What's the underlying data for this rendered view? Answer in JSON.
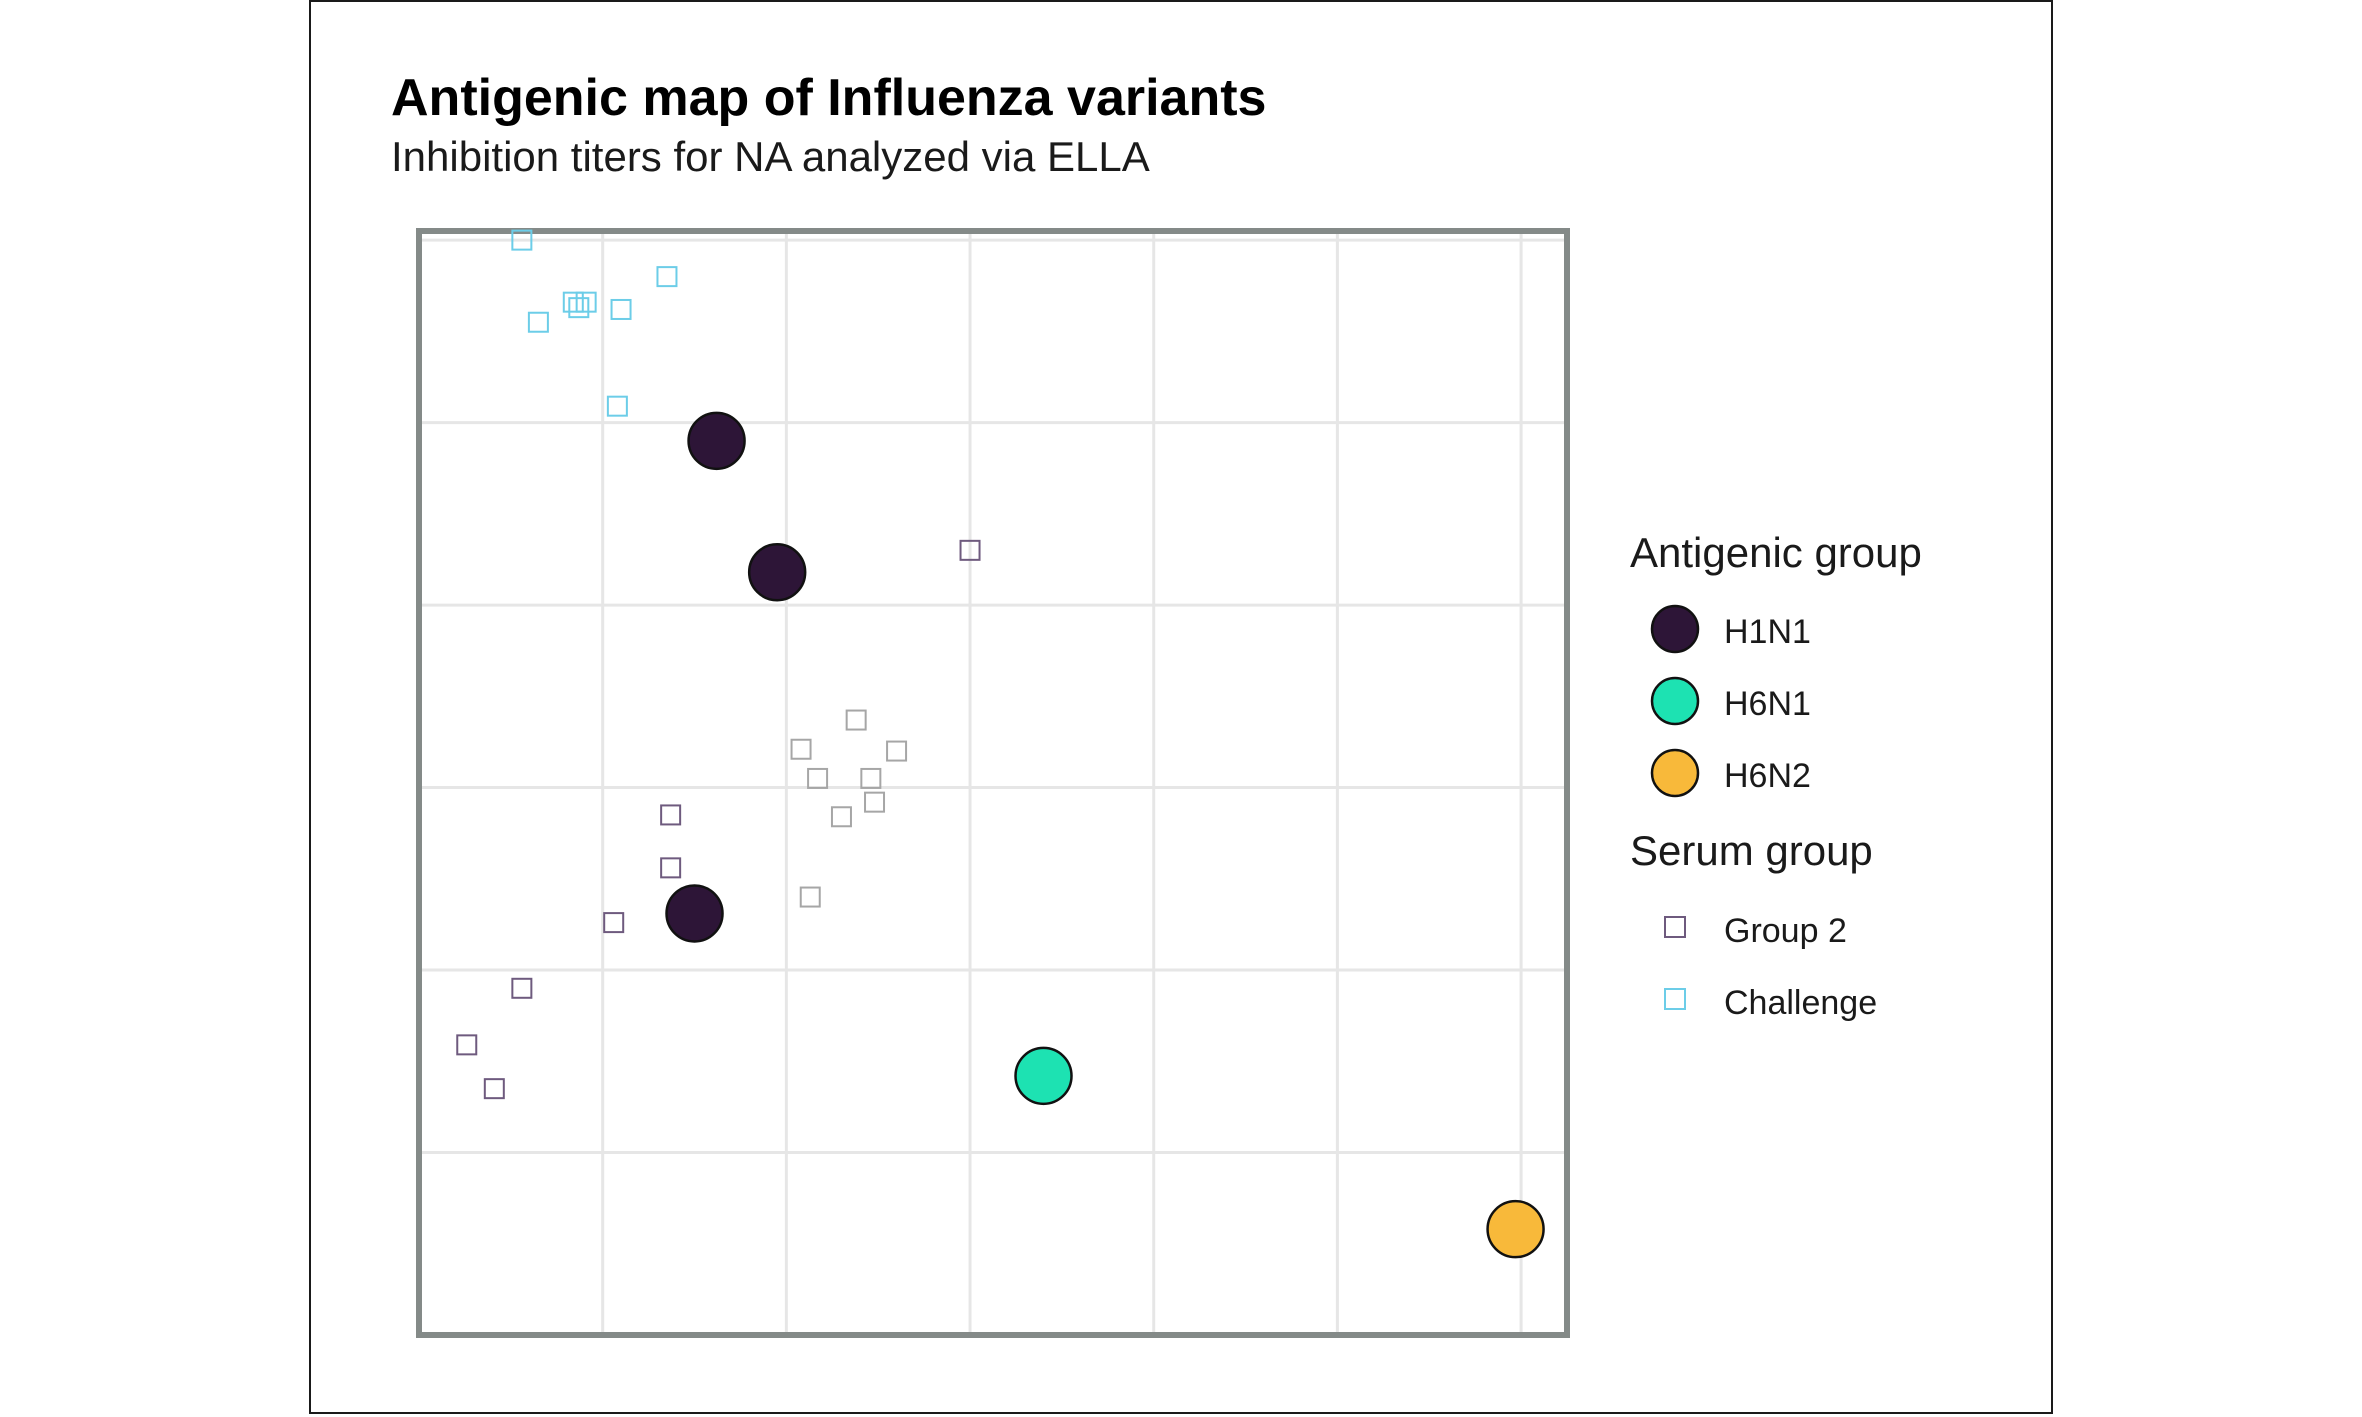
{
  "title": "Antigenic map of Influenza variants",
  "subtitle": "Inhibition titers for NA analyzed via ELLA",
  "chart_data": {
    "type": "scatter",
    "title": "Antigenic map of Influenza variants",
    "subtitle": "Inhibition titers for NA analyzed via ELLA",
    "xlabel": "",
    "ylabel": "",
    "xlim": [
      -1.0,
      5.25
    ],
    "ylim": [
      -1.0,
      5.05
    ],
    "grid": true,
    "tick_labels_shown": false,
    "legend_position": "right",
    "antigen_legend_title": "Antigenic group",
    "serum_legend_title": "Serum group",
    "antigens": [
      {
        "name": "H1N1",
        "color": "#2d1537",
        "points": [
          [
            0.62,
            3.9
          ],
          [
            0.95,
            3.18
          ],
          [
            0.5,
            1.31
          ]
        ]
      },
      {
        "name": "H6N1",
        "color": "#1de2b2",
        "points": [
          [
            2.4,
            0.42
          ]
        ]
      },
      {
        "name": "H6N2",
        "color": "#f8b93a",
        "points": [
          [
            4.97,
            -0.42
          ]
        ]
      }
    ],
    "sera": [
      {
        "name": "Group 2",
        "color": "#6e5a7e",
        "show_in_legend": true,
        "points": [
          [
            2.0,
            3.3
          ],
          [
            0.37,
            1.85
          ],
          [
            0.37,
            1.56
          ],
          [
            0.06,
            1.26
          ],
          [
            -0.44,
            0.9
          ],
          [
            -0.74,
            0.59
          ],
          [
            -0.59,
            0.35
          ]
        ]
      },
      {
        "name": "",
        "color": "#a6a6a6",
        "show_in_legend": false,
        "points": [
          [
            1.38,
            2.37
          ],
          [
            1.08,
            2.21
          ],
          [
            1.6,
            2.2
          ],
          [
            1.17,
            2.05
          ],
          [
            1.46,
            2.05
          ],
          [
            1.48,
            1.92
          ],
          [
            1.3,
            1.84
          ],
          [
            1.13,
            1.4
          ]
        ]
      },
      {
        "name": "Challenge",
        "color": "#6ccde8",
        "show_in_legend": true,
        "points": [
          [
            -0.44,
            5.0
          ],
          [
            0.35,
            4.8
          ],
          [
            -0.16,
            4.66
          ],
          [
            -0.09,
            4.66
          ],
          [
            -0.13,
            4.63
          ],
          [
            0.1,
            4.62
          ],
          [
            -0.35,
            4.55
          ],
          [
            0.08,
            4.09
          ]
        ]
      }
    ]
  }
}
